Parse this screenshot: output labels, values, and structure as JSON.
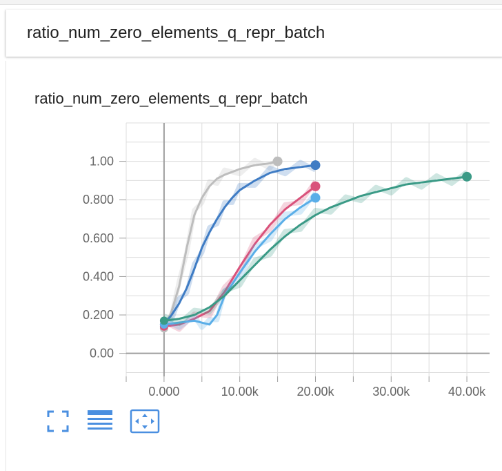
{
  "card": {
    "title": "ratio_num_zero_elements_q_repr_batch"
  },
  "toolbar": {
    "buttons": [
      {
        "icon": "fullscreen-icon"
      },
      {
        "icon": "data-table-icon"
      },
      {
        "icon": "fit-domain-icon"
      }
    ],
    "accent": "#4a8fe0"
  },
  "chart_data": {
    "type": "line",
    "title": "ratio_num_zero_elements_q_repr_batch",
    "xlabel": "",
    "ylabel": "",
    "xlim": [
      -5000,
      43000
    ],
    "ylim": [
      -0.12,
      1.2
    ],
    "x_tick_labels": [
      "0.000",
      "10.00k",
      "20.00k",
      "30.00k",
      "40.00k"
    ],
    "y_tick_labels": [
      "0.00",
      "0.200",
      "0.400",
      "0.600",
      "0.800",
      "1.00"
    ],
    "grid": true,
    "series": [
      {
        "color": "#bdbdbd",
        "x": [
          0,
          1000,
          2000,
          3000,
          4000,
          5000,
          6000,
          7000,
          8000,
          10000,
          12000,
          14000,
          15000
        ],
        "y": [
          0.13,
          0.22,
          0.35,
          0.55,
          0.72,
          0.81,
          0.87,
          0.91,
          0.93,
          0.96,
          0.98,
          0.99,
          1.0
        ]
      },
      {
        "color": "#3f7cc4",
        "x": [
          0,
          1000,
          2000,
          3000,
          4000,
          5000,
          6000,
          7000,
          8000,
          9000,
          10000,
          12000,
          14000,
          16000,
          18000,
          20000
        ],
        "y": [
          0.15,
          0.2,
          0.26,
          0.34,
          0.44,
          0.55,
          0.63,
          0.7,
          0.76,
          0.81,
          0.85,
          0.9,
          0.94,
          0.96,
          0.97,
          0.98
        ]
      },
      {
        "color": "#d9527b",
        "x": [
          0,
          2000,
          4000,
          6000,
          8000,
          10000,
          12000,
          14000,
          16000,
          18000,
          20000
        ],
        "y": [
          0.14,
          0.15,
          0.18,
          0.22,
          0.32,
          0.45,
          0.57,
          0.67,
          0.75,
          0.81,
          0.87
        ]
      },
      {
        "color": "#5aaee8",
        "x": [
          0,
          2000,
          4000,
          5000,
          6000,
          7000,
          8000,
          10000,
          12000,
          14000,
          16000,
          18000,
          20000
        ],
        "y": [
          0.15,
          0.16,
          0.17,
          0.16,
          0.15,
          0.2,
          0.3,
          0.42,
          0.53,
          0.62,
          0.7,
          0.76,
          0.81
        ]
      },
      {
        "color": "#3a9a86",
        "x": [
          0,
          2000,
          4000,
          6000,
          8000,
          10000,
          12000,
          14000,
          16000,
          18000,
          20000,
          22000,
          24000,
          26000,
          28000,
          30000,
          32000,
          34000,
          36000,
          38000,
          40000
        ],
        "y": [
          0.17,
          0.18,
          0.2,
          0.24,
          0.3,
          0.38,
          0.46,
          0.54,
          0.61,
          0.67,
          0.72,
          0.76,
          0.79,
          0.82,
          0.84,
          0.86,
          0.88,
          0.89,
          0.9,
          0.91,
          0.92
        ]
      }
    ]
  }
}
